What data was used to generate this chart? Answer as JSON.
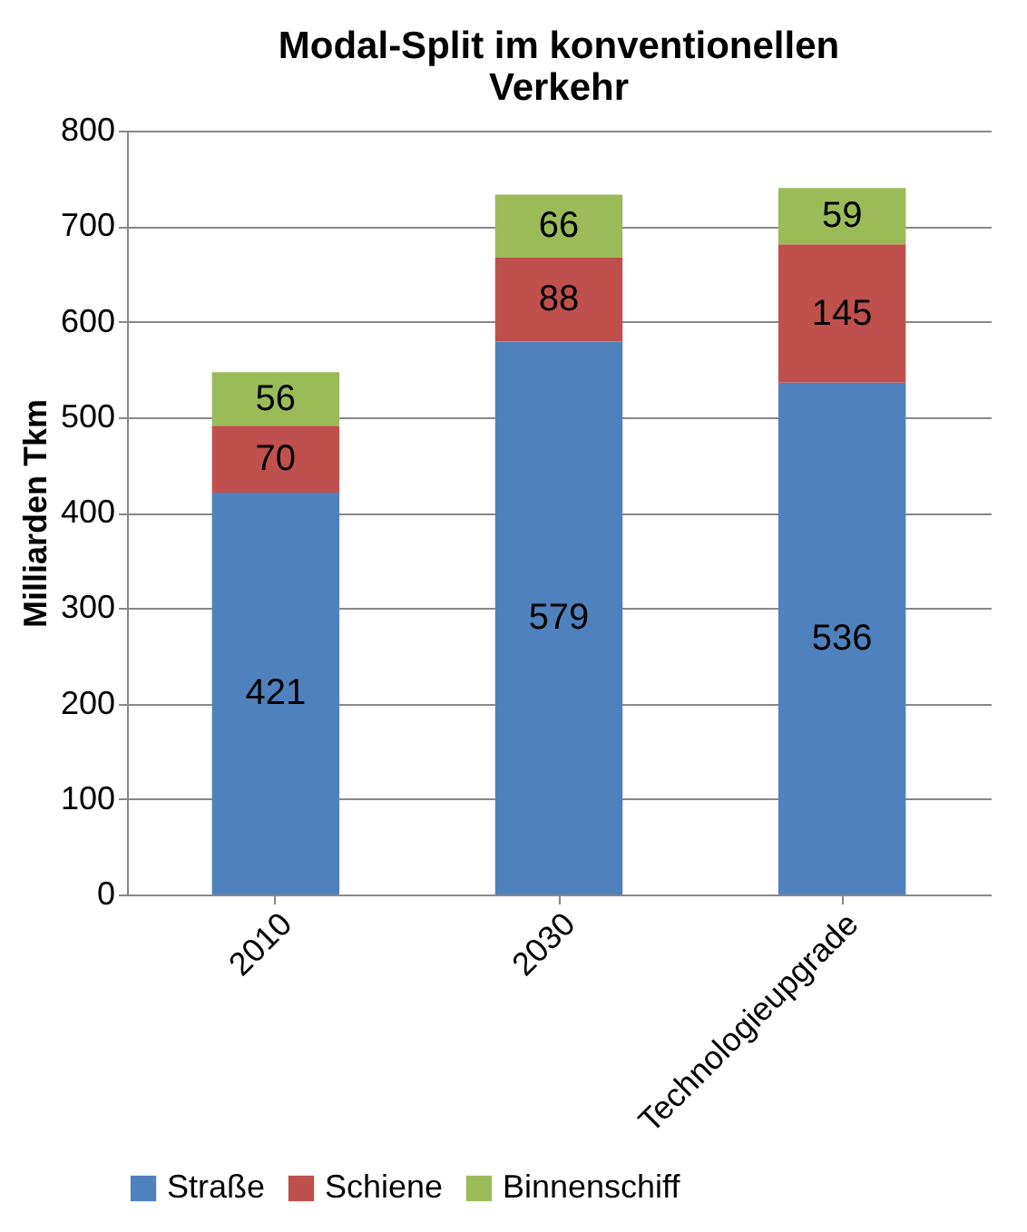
{
  "chart_data": {
    "type": "bar",
    "title": "Modal-Split im konventionellen Verkehr",
    "ylabel": "Milliarden Tkm",
    "categories": [
      "2010",
      "2030",
      "Technologieupgrade"
    ],
    "series": [
      {
        "name": "Straße",
        "color": "#4f81bd",
        "values": [
          421,
          579,
          536
        ]
      },
      {
        "name": "Schiene",
        "color": "#c0504d",
        "values": [
          70,
          88,
          145
        ]
      },
      {
        "name": "Binnenschiff",
        "color": "#9bbb59",
        "values": [
          56,
          66,
          59
        ]
      }
    ],
    "stacked": true,
    "ylim": [
      0,
      800
    ],
    "yticks": [
      0,
      100,
      200,
      300,
      400,
      500,
      600,
      700,
      800
    ],
    "grid": "y",
    "legend": "bottom",
    "data_labels": true
  }
}
